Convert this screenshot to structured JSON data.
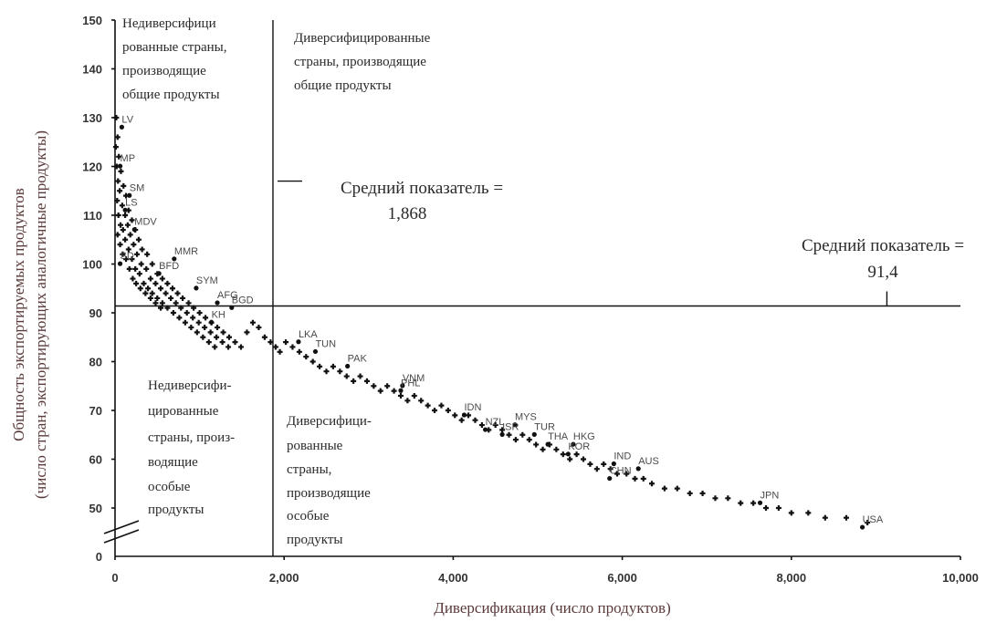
{
  "chart_data": {
    "type": "scatter",
    "xlabel": "Диверсификация (число продуктов)",
    "ylabel_line1": "Общность экспортируемых продуктов",
    "ylabel_line2": "(число стран, экспортирующих аналогичные продукты)",
    "xlim": [
      0,
      10000
    ],
    "ylim": [
      40,
      150
    ],
    "axis_break": true,
    "x_ticks": [
      0,
      2000,
      4000,
      6000,
      8000,
      10000
    ],
    "x_tick_labels": [
      "0",
      "2,000",
      "4,000",
      "6,000",
      "8,000",
      "10,000"
    ],
    "y_ticks": [
      50,
      60,
      70,
      80,
      90,
      100,
      110,
      120,
      130,
      140,
      150
    ],
    "y_tick_labels": [
      "50",
      "60",
      "70",
      "80",
      "90",
      "100",
      "110",
      "120",
      "130",
      "140",
      "150"
    ],
    "y_zero_label": "0",
    "grid": false,
    "legend": "none",
    "mean_x": {
      "value": 1868,
      "label": "Средний показатель =",
      "value_label": "1,868"
    },
    "mean_y": {
      "value": 91.4,
      "label": "Средний показатель =",
      "value_label": "91,4"
    },
    "quadrant_labels": {
      "top_left": [
        "Недиверсифици",
        "рованные страны,",
        "производящие",
        "общие продукты"
      ],
      "top_right": [
        "Диверсифицированные",
        "страны, производящие",
        "общие продукты"
      ],
      "bottom_left": [
        "Недиверсифи-",
        "цированные",
        "страны, произ-",
        "водящие",
        "особые",
        "продукты"
      ],
      "bottom_right": [
        "Диверсифици-",
        "рованные",
        "страны,",
        "производящие",
        "особые",
        "продукты"
      ]
    },
    "labeled_points": [
      {
        "label": "LV",
        "x": 80,
        "y": 129
      },
      {
        "label": "MP",
        "x": 60,
        "y": 121
      },
      {
        "label": "SM",
        "x": 170,
        "y": 115
      },
      {
        "label": "LS",
        "x": 120,
        "y": 112
      },
      {
        "label": "MDV",
        "x": 230,
        "y": 108
      },
      {
        "label": "MMR",
        "x": 700,
        "y": 102
      },
      {
        "label": "BFD",
        "x": 520,
        "y": 99
      },
      {
        "label": "SD",
        "x": 60,
        "y": 101
      },
      {
        "label": "SYM",
        "x": 960,
        "y": 96
      },
      {
        "label": "AFG",
        "x": 1210,
        "y": 93
      },
      {
        "label": "BGD",
        "x": 1380,
        "y": 92
      },
      {
        "label": "KH",
        "x": 1140,
        "y": 89
      },
      {
        "label": "LKA",
        "x": 2170,
        "y": 85
      },
      {
        "label": "TUN",
        "x": 2370,
        "y": 83
      },
      {
        "label": "PAK",
        "x": 2750,
        "y": 80
      },
      {
        "label": "VNM",
        "x": 3400,
        "y": 76
      },
      {
        "label": "PHL",
        "x": 3380,
        "y": 75
      },
      {
        "label": "IDN",
        "x": 4130,
        "y": 70
      },
      {
        "label": "NZL",
        "x": 4380,
        "y": 67
      },
      {
        "label": "MYS",
        "x": 4730,
        "y": 68
      },
      {
        "label": "ISR",
        "x": 4580,
        "y": 66
      },
      {
        "label": "TUR",
        "x": 4960,
        "y": 66
      },
      {
        "label": "THA",
        "x": 5120,
        "y": 64
      },
      {
        "label": "HKG",
        "x": 5420,
        "y": 64
      },
      {
        "label": "KOR",
        "x": 5360,
        "y": 62
      },
      {
        "label": "IND",
        "x": 5900,
        "y": 60
      },
      {
        "label": "AUS",
        "x": 6190,
        "y": 59
      },
      {
        "label": "CHN",
        "x": 5850,
        "y": 57
      },
      {
        "label": "JPN",
        "x": 7630,
        "y": 52
      },
      {
        "label": "USA",
        "x": 8840,
        "y": 47
      }
    ],
    "points": [
      [
        15,
        130
      ],
      [
        30,
        126
      ],
      [
        10,
        124
      ],
      [
        45,
        122
      ],
      [
        20,
        120
      ],
      [
        70,
        119
      ],
      [
        35,
        117
      ],
      [
        100,
        116
      ],
      [
        55,
        115
      ],
      [
        130,
        114
      ],
      [
        25,
        113
      ],
      [
        85,
        112
      ],
      [
        160,
        111
      ],
      [
        40,
        110
      ],
      [
        120,
        110
      ],
      [
        200,
        109
      ],
      [
        65,
        108
      ],
      [
        150,
        108
      ],
      [
        240,
        107
      ],
      [
        95,
        107
      ],
      [
        30,
        106
      ],
      [
        180,
        106
      ],
      [
        280,
        105
      ],
      [
        120,
        105
      ],
      [
        60,
        104
      ],
      [
        220,
        104
      ],
      [
        320,
        103
      ],
      [
        160,
        103
      ],
      [
        90,
        102
      ],
      [
        260,
        102
      ],
      [
        380,
        102
      ],
      [
        200,
        101
      ],
      [
        130,
        101
      ],
      [
        310,
        100
      ],
      [
        440,
        100
      ],
      [
        240,
        99
      ],
      [
        170,
        99
      ],
      [
        370,
        99
      ],
      [
        500,
        98
      ],
      [
        290,
        98
      ],
      [
        210,
        97
      ],
      [
        420,
        97
      ],
      [
        560,
        97
      ],
      [
        340,
        96
      ],
      [
        250,
        96
      ],
      [
        480,
        96
      ],
      [
        620,
        96
      ],
      [
        390,
        95
      ],
      [
        300,
        95
      ],
      [
        540,
        95
      ],
      [
        680,
        95
      ],
      [
        440,
        94
      ],
      [
        360,
        94
      ],
      [
        600,
        94
      ],
      [
        740,
        94
      ],
      [
        500,
        93
      ],
      [
        420,
        93
      ],
      [
        660,
        93
      ],
      [
        800,
        93
      ],
      [
        560,
        92
      ],
      [
        480,
        92
      ],
      [
        720,
        92
      ],
      [
        870,
        92
      ],
      [
        620,
        91
      ],
      [
        540,
        91
      ],
      [
        780,
        91
      ],
      [
        930,
        91
      ],
      [
        690,
        90
      ],
      [
        850,
        90
      ],
      [
        1000,
        90
      ],
      [
        760,
        89
      ],
      [
        920,
        89
      ],
      [
        1070,
        89
      ],
      [
        830,
        88
      ],
      [
        990,
        88
      ],
      [
        1140,
        88
      ],
      [
        900,
        87
      ],
      [
        1060,
        87
      ],
      [
        1210,
        87
      ],
      [
        970,
        86
      ],
      [
        1130,
        86
      ],
      [
        1280,
        86
      ],
      [
        1040,
        85
      ],
      [
        1200,
        85
      ],
      [
        1350,
        85
      ],
      [
        1110,
        84
      ],
      [
        1270,
        84
      ],
      [
        1420,
        84
      ],
      [
        1180,
        83
      ],
      [
        1340,
        83
      ],
      [
        1490,
        83
      ],
      [
        1560,
        86
      ],
      [
        1630,
        88
      ],
      [
        1700,
        87
      ],
      [
        1770,
        85
      ],
      [
        1840,
        84
      ],
      [
        1900,
        83
      ],
      [
        1950,
        82
      ],
      [
        2020,
        84
      ],
      [
        2100,
        83
      ],
      [
        2180,
        82
      ],
      [
        2260,
        81
      ],
      [
        2340,
        80
      ],
      [
        2420,
        79
      ],
      [
        2500,
        78
      ],
      [
        2580,
        79
      ],
      [
        2660,
        78
      ],
      [
        2740,
        77
      ],
      [
        2820,
        76
      ],
      [
        2900,
        77
      ],
      [
        2980,
        76
      ],
      [
        3060,
        75
      ],
      [
        3140,
        74
      ],
      [
        3220,
        75
      ],
      [
        3300,
        74
      ],
      [
        3380,
        73
      ],
      [
        3460,
        72
      ],
      [
        3540,
        73
      ],
      [
        3620,
        72
      ],
      [
        3700,
        71
      ],
      [
        3780,
        70
      ],
      [
        3860,
        71
      ],
      [
        3940,
        70
      ],
      [
        4020,
        69
      ],
      [
        4100,
        68
      ],
      [
        4180,
        69
      ],
      [
        4260,
        68
      ],
      [
        4340,
        67
      ],
      [
        4420,
        66
      ],
      [
        4500,
        67
      ],
      [
        4580,
        66
      ],
      [
        4660,
        65
      ],
      [
        4740,
        64
      ],
      [
        4820,
        65
      ],
      [
        4900,
        64
      ],
      [
        4980,
        63
      ],
      [
        5060,
        62
      ],
      [
        5140,
        63
      ],
      [
        5220,
        62
      ],
      [
        5300,
        61
      ],
      [
        5380,
        60
      ],
      [
        5460,
        61
      ],
      [
        5540,
        60
      ],
      [
        5620,
        59
      ],
      [
        5700,
        58
      ],
      [
        5780,
        59
      ],
      [
        5860,
        58
      ],
      [
        5940,
        57
      ],
      [
        6050,
        57
      ],
      [
        6150,
        56
      ],
      [
        6250,
        56
      ],
      [
        6350,
        55
      ],
      [
        6500,
        54
      ],
      [
        6650,
        54
      ],
      [
        6800,
        53
      ],
      [
        6950,
        53
      ],
      [
        7100,
        52
      ],
      [
        7250,
        52
      ],
      [
        7400,
        51
      ],
      [
        7550,
        51
      ],
      [
        7700,
        50
      ],
      [
        7850,
        50
      ],
      [
        8000,
        49
      ],
      [
        8200,
        49
      ],
      [
        8400,
        48
      ],
      [
        8650,
        48
      ],
      [
        8900,
        47
      ]
    ]
  }
}
